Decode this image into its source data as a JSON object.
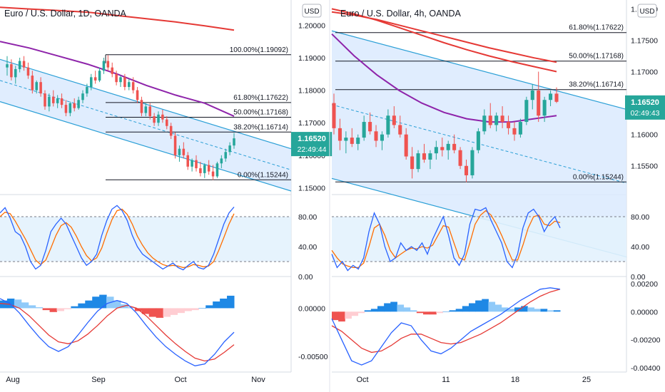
{
  "chart_data": [
    {
      "type": "candlestick",
      "title": "Euro / U.S. Dollar, 1D, OANDA",
      "currency": "USD",
      "x_ticks": [
        "Aug",
        "Sep",
        "Oct",
        "Nov"
      ],
      "price": {
        "ylim": [
          1.149,
          1.206
        ],
        "y_ticks": [
          "1.20000",
          "1.19000",
          "1.18000",
          "1.17000",
          "1.16000",
          "1.15000"
        ],
        "last_price": "1.16520",
        "countdown": "22:49:44",
        "candles": [
          [
            1.187,
            1.1905,
            1.1845,
            1.188
          ],
          [
            1.188,
            1.1895,
            1.183,
            1.184
          ],
          [
            1.184,
            1.1875,
            1.182,
            1.1865
          ],
          [
            1.1865,
            1.19,
            1.1855,
            1.189
          ],
          [
            1.189,
            1.1905,
            1.186,
            1.187
          ],
          [
            1.187,
            1.1885,
            1.1835,
            1.1845
          ],
          [
            1.1845,
            1.186,
            1.179,
            1.18
          ],
          [
            1.18,
            1.183,
            1.179,
            1.1825
          ],
          [
            1.1825,
            1.184,
            1.178,
            1.179
          ],
          [
            1.179,
            1.18,
            1.174,
            1.175
          ],
          [
            1.175,
            1.179,
            1.1735,
            1.178
          ],
          [
            1.178,
            1.18,
            1.175,
            1.176
          ],
          [
            1.176,
            1.1785,
            1.1745,
            1.1775
          ],
          [
            1.1775,
            1.179,
            1.1745,
            1.1755
          ],
          [
            1.1755,
            1.177,
            1.172,
            1.173
          ],
          [
            1.173,
            1.1765,
            1.172,
            1.176
          ],
          [
            1.176,
            1.1775,
            1.1735,
            1.1745
          ],
          [
            1.1745,
            1.178,
            1.174,
            1.177
          ],
          [
            1.177,
            1.18,
            1.176,
            1.179
          ],
          [
            1.179,
            1.182,
            1.178,
            1.181
          ],
          [
            1.181,
            1.185,
            1.18,
            1.184
          ],
          [
            1.184,
            1.186,
            1.182,
            1.183
          ],
          [
            1.183,
            1.187,
            1.1825,
            1.186
          ],
          [
            1.186,
            1.19,
            1.185,
            1.189
          ],
          [
            1.189,
            1.1908,
            1.186,
            1.187
          ],
          [
            1.187,
            1.1885,
            1.184,
            1.185
          ],
          [
            1.185,
            1.186,
            1.1815,
            1.1825
          ],
          [
            1.1825,
            1.1845,
            1.181,
            1.184
          ],
          [
            1.184,
            1.185,
            1.18,
            1.181
          ],
          [
            1.181,
            1.1835,
            1.18,
            1.1825
          ],
          [
            1.1825,
            1.184,
            1.179,
            1.18
          ],
          [
            1.18,
            1.181,
            1.176,
            1.177
          ],
          [
            1.177,
            1.178,
            1.172,
            1.173
          ],
          [
            1.173,
            1.176,
            1.172,
            1.175
          ],
          [
            1.175,
            1.176,
            1.171,
            1.172
          ],
          [
            1.172,
            1.173,
            1.169,
            1.17
          ],
          [
            1.17,
            1.1735,
            1.169,
            1.1725
          ],
          [
            1.1725,
            1.174,
            1.17,
            1.171
          ],
          [
            1.171,
            1.172,
            1.168,
            1.169
          ],
          [
            1.169,
            1.17,
            1.165,
            1.166
          ],
          [
            1.166,
            1.167,
            1.159,
            1.16
          ],
          [
            1.16,
            1.163,
            1.158,
            1.162
          ],
          [
            1.162,
            1.164,
            1.159,
            1.16
          ],
          [
            1.16,
            1.161,
            1.1555,
            1.1565
          ],
          [
            1.1565,
            1.159,
            1.155,
            1.1585
          ],
          [
            1.1585,
            1.16,
            1.155,
            1.156
          ],
          [
            1.156,
            1.158,
            1.1535,
            1.1545
          ],
          [
            1.1545,
            1.1575,
            1.153,
            1.157
          ],
          [
            1.157,
            1.1585,
            1.154,
            1.155
          ],
          [
            1.155,
            1.157,
            1.1524,
            1.1535
          ],
          [
            1.1535,
            1.158,
            1.153,
            1.1575
          ],
          [
            1.1575,
            1.16,
            1.156,
            1.159
          ],
          [
            1.159,
            1.162,
            1.158,
            1.161
          ],
          [
            1.161,
            1.164,
            1.16,
            1.163
          ],
          [
            1.163,
            1.1668,
            1.162,
            1.1652
          ]
        ],
        "ma_purple": [
          1.195,
          1.193,
          1.1905,
          1.188,
          1.185,
          1.1815,
          1.1785,
          1.176,
          1.172
        ],
        "ma_red": [
          1.2055,
          1.205,
          1.2045,
          1.204,
          1.203,
          1.202,
          1.201,
          1.1998,
          1.1985
        ],
        "channel_upper": [
          1.1895,
          1.162
        ],
        "channel_lower": [
          1.1765,
          1.149
        ],
        "fibonacci": [
          {
            "level": "100.00%",
            "price": 1.19092,
            "text": "100.00%(1.19092)"
          },
          {
            "level": "61.80%",
            "price": 1.17622,
            "text": "61.80%(1.17622)"
          },
          {
            "level": "50.00%",
            "price": 1.17168,
            "text": "50.00%(1.17168)"
          },
          {
            "level": "38.20%",
            "price": 1.16714,
            "text": "38.20%(1.16714)"
          },
          {
            "level": "0.00%",
            "price": 1.15244,
            "text": "0.00%(1.15244)"
          }
        ]
      },
      "stochastic": {
        "ylim": [
          0,
          100
        ],
        "y_ticks": [
          "80.00",
          "40.00",
          "0.00"
        ],
        "band": [
          20,
          80
        ],
        "k": [
          85,
          92,
          78,
          60,
          55,
          40,
          20,
          10,
          15,
          35,
          60,
          70,
          78,
          70,
          55,
          40,
          25,
          15,
          20,
          30,
          55,
          75,
          90,
          95,
          88,
          75,
          55,
          40,
          30,
          25,
          20,
          15,
          10,
          14,
          18,
          12,
          9,
          15,
          20,
          12,
          10,
          15,
          30,
          50,
          70,
          85,
          93
        ],
        "d": [
          80,
          86,
          84,
          74,
          62,
          50,
          36,
          22,
          16,
          22,
          38,
          55,
          68,
          72,
          66,
          54,
          40,
          28,
          21,
          25,
          38,
          58,
          76,
          88,
          90,
          83,
          70,
          54,
          42,
          32,
          25,
          20,
          16,
          14,
          15,
          14,
          12,
          13,
          16,
          15,
          13,
          14,
          20,
          35,
          52,
          70,
          84
        ]
      },
      "macd": {
        "ylim": [
          -0.0065,
          0.003
        ],
        "y_ticks": [
          "0.00000",
          "-0.00500"
        ],
        "histogram": [
          0.0008,
          0.001,
          0.0009,
          0.0006,
          0.0003,
          0.0001,
          -0.0002,
          -0.0004,
          -0.0003,
          -0.0001,
          0.0002,
          0.0005,
          0.0008,
          0.0012,
          0.0014,
          0.0012,
          0.0008,
          0.0004,
          0.0001,
          -0.0003,
          -0.0006,
          -0.0009,
          -0.001,
          -0.0009,
          -0.0007,
          -0.0005,
          -0.0003,
          -0.0002,
          0.0,
          0.0003,
          0.0007,
          0.001,
          0.0013
        ],
        "macd_line": [
          0.001,
          0.0005,
          -0.0005,
          -0.0018,
          -0.003,
          -0.004,
          -0.0045,
          -0.004,
          -0.0028,
          -0.0015,
          -0.0003,
          0.0005,
          0.0008,
          0.0005,
          -0.0005,
          -0.0018,
          -0.003,
          -0.004,
          -0.0048,
          -0.0055,
          -0.006,
          -0.0058,
          -0.0048,
          -0.0035,
          -0.0025
        ],
        "signal_line": [
          0.0005,
          0.0004,
          0.0,
          -0.0008,
          -0.0018,
          -0.0028,
          -0.0035,
          -0.0037,
          -0.0034,
          -0.0027,
          -0.0018,
          -0.0008,
          0.0,
          0.0003,
          0.0,
          -0.0008,
          -0.0018,
          -0.0028,
          -0.0037,
          -0.0045,
          -0.0052,
          -0.0055,
          -0.0053,
          -0.0046,
          -0.0038
        ]
      }
    },
    {
      "type": "candlestick",
      "title": "Euro / U.S. Dollar, 4h, OANDA",
      "currency": "USD",
      "x_ticks": [
        "Oct",
        "11",
        "18",
        "25"
      ],
      "price": {
        "ylim": [
          1.151,
          1.1805
        ],
        "y_ticks": [
          "1.18000",
          "1.17500",
          "1.17000",
          "1.16500",
          "1.16000",
          "1.15500"
        ],
        "last_price": "1.16520",
        "countdown": "02:49:43",
        "candles": [
          [
            1.165,
            1.1665,
            1.16,
            1.161
          ],
          [
            1.161,
            1.1625,
            1.1575,
            1.159
          ],
          [
            1.159,
            1.1605,
            1.157,
            1.1595
          ],
          [
            1.1595,
            1.161,
            1.158,
            1.1585
          ],
          [
            1.1585,
            1.16,
            1.1575,
            1.1595
          ],
          [
            1.1595,
            1.163,
            1.159,
            1.162
          ],
          [
            1.162,
            1.1635,
            1.16,
            1.1605
          ],
          [
            1.1605,
            1.1615,
            1.158,
            1.159
          ],
          [
            1.159,
            1.1605,
            1.1575,
            1.16
          ],
          [
            1.16,
            1.164,
            1.1595,
            1.163
          ],
          [
            1.163,
            1.1645,
            1.161,
            1.1615
          ],
          [
            1.1615,
            1.163,
            1.1595,
            1.16
          ],
          [
            1.16,
            1.161,
            1.156,
            1.1565
          ],
          [
            1.1565,
            1.158,
            1.153,
            1.1545
          ],
          [
            1.1545,
            1.1575,
            1.154,
            1.157
          ],
          [
            1.157,
            1.1585,
            1.1555,
            1.156
          ],
          [
            1.156,
            1.1575,
            1.1545,
            1.157
          ],
          [
            1.157,
            1.159,
            1.156,
            1.158
          ],
          [
            1.158,
            1.1595,
            1.1565,
            1.1575
          ],
          [
            1.1575,
            1.159,
            1.156,
            1.1585
          ],
          [
            1.1585,
            1.16,
            1.157,
            1.1575
          ],
          [
            1.1575,
            1.158,
            1.1545,
            1.155
          ],
          [
            1.155,
            1.156,
            1.1524,
            1.1535
          ],
          [
            1.1535,
            1.158,
            1.153,
            1.1575
          ],
          [
            1.1575,
            1.161,
            1.157,
            1.1605
          ],
          [
            1.1605,
            1.164,
            1.16,
            1.163
          ],
          [
            1.163,
            1.165,
            1.161,
            1.1615
          ],
          [
            1.1615,
            1.1635,
            1.1605,
            1.163
          ],
          [
            1.163,
            1.1645,
            1.161,
            1.162
          ],
          [
            1.162,
            1.163,
            1.16,
            1.161
          ],
          [
            1.161,
            1.162,
            1.159,
            1.16
          ],
          [
            1.16,
            1.1625,
            1.1595,
            1.162
          ],
          [
            1.162,
            1.166,
            1.1615,
            1.1655
          ],
          [
            1.1655,
            1.168,
            1.164,
            1.167
          ],
          [
            1.167,
            1.17,
            1.162,
            1.163
          ],
          [
            1.163,
            1.166,
            1.162,
            1.1655
          ],
          [
            1.1655,
            1.167,
            1.1645,
            1.1665
          ],
          [
            1.1665,
            1.1675,
            1.165,
            1.1652
          ]
        ],
        "ma_purple": [
          1.176,
          1.1725,
          1.1695,
          1.167,
          1.165,
          1.1635,
          1.1625,
          1.162,
          1.162,
          1.1625,
          1.163
        ],
        "ma_red": [
          1.18,
          1.1792,
          1.1782,
          1.177,
          1.1758,
          1.1746,
          1.1735,
          1.1725,
          1.1716,
          1.1708,
          1.17
        ],
        "ma_red2": [
          1.1795,
          1.179,
          1.1783,
          1.1774,
          1.1765,
          1.1756,
          1.1747,
          1.1738,
          1.173,
          1.1722,
          1.1715
        ],
        "channel_upper": [
          1.1765,
          1.164
        ],
        "channel_lower": [
          1.153,
          1.1405
        ],
        "fibonacci": [
          {
            "level": "61.80%",
            "price": 1.17622,
            "text": "61.80%(1.17622)"
          },
          {
            "level": "50.00%",
            "price": 1.17168,
            "text": "50.00%(1.17168)"
          },
          {
            "level": "38.20%",
            "price": 1.16714,
            "text": "38.20%(1.16714)"
          },
          {
            "level": "0.00%",
            "price": 1.15244,
            "text": "0.00%(1.15244)"
          }
        ]
      },
      "stochastic": {
        "ylim": [
          0,
          100
        ],
        "y_ticks": [
          "80.00",
          "40.00",
          "0.00"
        ],
        "band": [
          20,
          80
        ],
        "k": [
          30,
          12,
          20,
          8,
          15,
          10,
          25,
          60,
          85,
          70,
          40,
          20,
          25,
          45,
          35,
          40,
          35,
          45,
          30,
          50,
          65,
          80,
          55,
          25,
          15,
          30,
          70,
          90,
          88,
          92,
          75,
          60,
          45,
          20,
          12,
          30,
          65,
          85,
          90,
          80,
          60,
          72,
          80,
          65
        ],
        "d": [
          35,
          25,
          17,
          14,
          12,
          12,
          18,
          40,
          65,
          70,
          55,
          35,
          25,
          30,
          35,
          38,
          37,
          40,
          38,
          42,
          55,
          68,
          66,
          45,
          25,
          22,
          45,
          70,
          82,
          88,
          82,
          70,
          55,
          38,
          22,
          22,
          42,
          65,
          80,
          82,
          70,
          68,
          74,
          72
        ]
      },
      "macd": {
        "ylim": [
          -0.0042,
          0.0023
        ],
        "y_ticks": [
          "0.00200",
          "0.00000",
          "-0.00200",
          "-0.00400"
        ],
        "histogram": [
          -0.0006,
          -0.0007,
          -0.0005,
          -0.0003,
          -0.0001,
          0.0001,
          0.0002,
          0.0004,
          0.0006,
          0.0007,
          0.0005,
          0.0003,
          0.0001,
          -0.0001,
          -0.0002,
          -0.0002,
          -0.0001,
          0.0,
          0.0001,
          0.0002,
          0.0004,
          0.0006,
          0.0008,
          0.0009,
          0.0007,
          0.0005,
          0.0003,
          0.0002,
          0.0003,
          0.0004,
          0.0003,
          0.0002,
          0.0002,
          0.0001,
          0.0001
        ],
        "macd_line": [
          -0.0005,
          -0.002,
          -0.0035,
          -0.0038,
          -0.0035,
          -0.0025,
          -0.0015,
          -0.0008,
          -0.001,
          -0.002,
          -0.0028,
          -0.003,
          -0.0026,
          -0.002,
          -0.0014,
          -0.001,
          -0.0006,
          -0.0002,
          0.0003,
          0.0008,
          0.0012,
          0.0016,
          0.0017,
          0.0016
        ],
        "signal_line": [
          -0.001,
          -0.0014,
          -0.002,
          -0.0026,
          -0.0029,
          -0.0028,
          -0.0024,
          -0.0019,
          -0.0016,
          -0.0016,
          -0.0019,
          -0.0022,
          -0.0023,
          -0.0022,
          -0.0019,
          -0.0016,
          -0.0012,
          -0.0008,
          -0.0003,
          0.0002,
          0.0007,
          0.0011,
          0.0014,
          0.0016
        ]
      }
    }
  ]
}
